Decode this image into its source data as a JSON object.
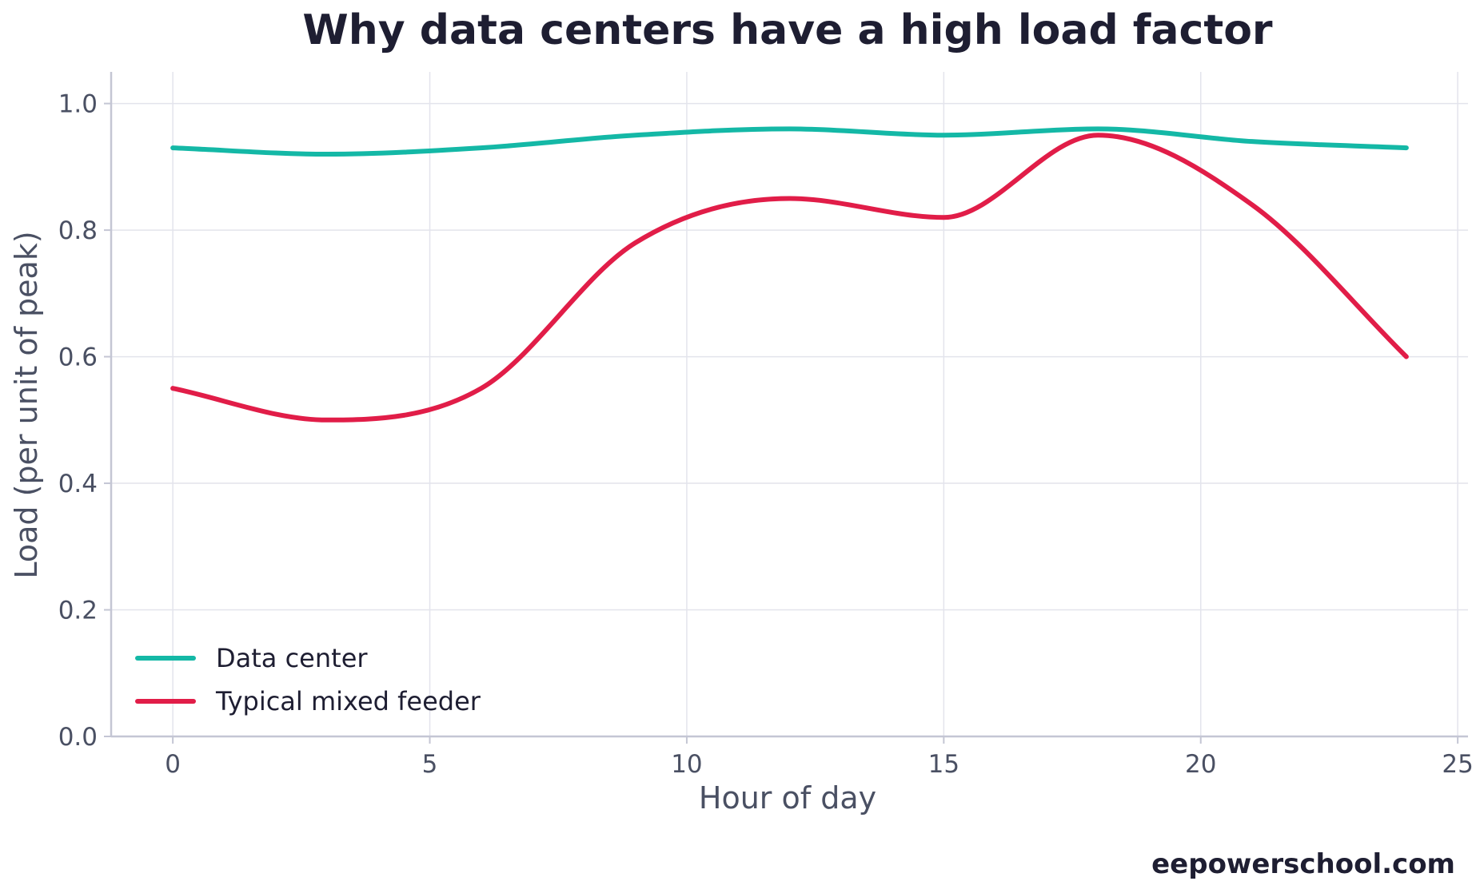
{
  "title": "Why data centers have a high load factor",
  "footer": "eepowerschool.com",
  "chart_data": {
    "type": "line",
    "title": "Why data centers have a high load factor",
    "xlabel": "Hour of day",
    "ylabel": "Load (per unit of peak)",
    "xlim": [
      -1.2,
      25.2
    ],
    "ylim": [
      0.0,
      1.05
    ],
    "xticks": [
      0,
      5,
      10,
      15,
      20,
      25
    ],
    "yticks": [
      0.0,
      0.2,
      0.4,
      0.6,
      0.8,
      1.0
    ],
    "xtick_labels": [
      "0",
      "5",
      "10",
      "15",
      "20",
      "25"
    ],
    "ytick_labels": [
      "0.0",
      "0.2",
      "0.4",
      "0.6",
      "0.8",
      "1.0"
    ],
    "grid": true,
    "legend_position": "lower-left",
    "series": [
      {
        "name": "Data center",
        "color": "#14b8a6",
        "x": [
          0,
          3,
          6,
          9,
          12,
          15,
          18,
          21,
          24
        ],
        "y": [
          0.93,
          0.92,
          0.93,
          0.95,
          0.96,
          0.95,
          0.96,
          0.94,
          0.93
        ]
      },
      {
        "name": "Typical mixed feeder",
        "color": "#e11d48",
        "x": [
          0,
          3,
          6,
          9,
          12,
          15,
          18,
          21,
          24
        ],
        "y": [
          0.55,
          0.5,
          0.55,
          0.78,
          0.85,
          0.82,
          0.95,
          0.84,
          0.6
        ]
      }
    ]
  }
}
